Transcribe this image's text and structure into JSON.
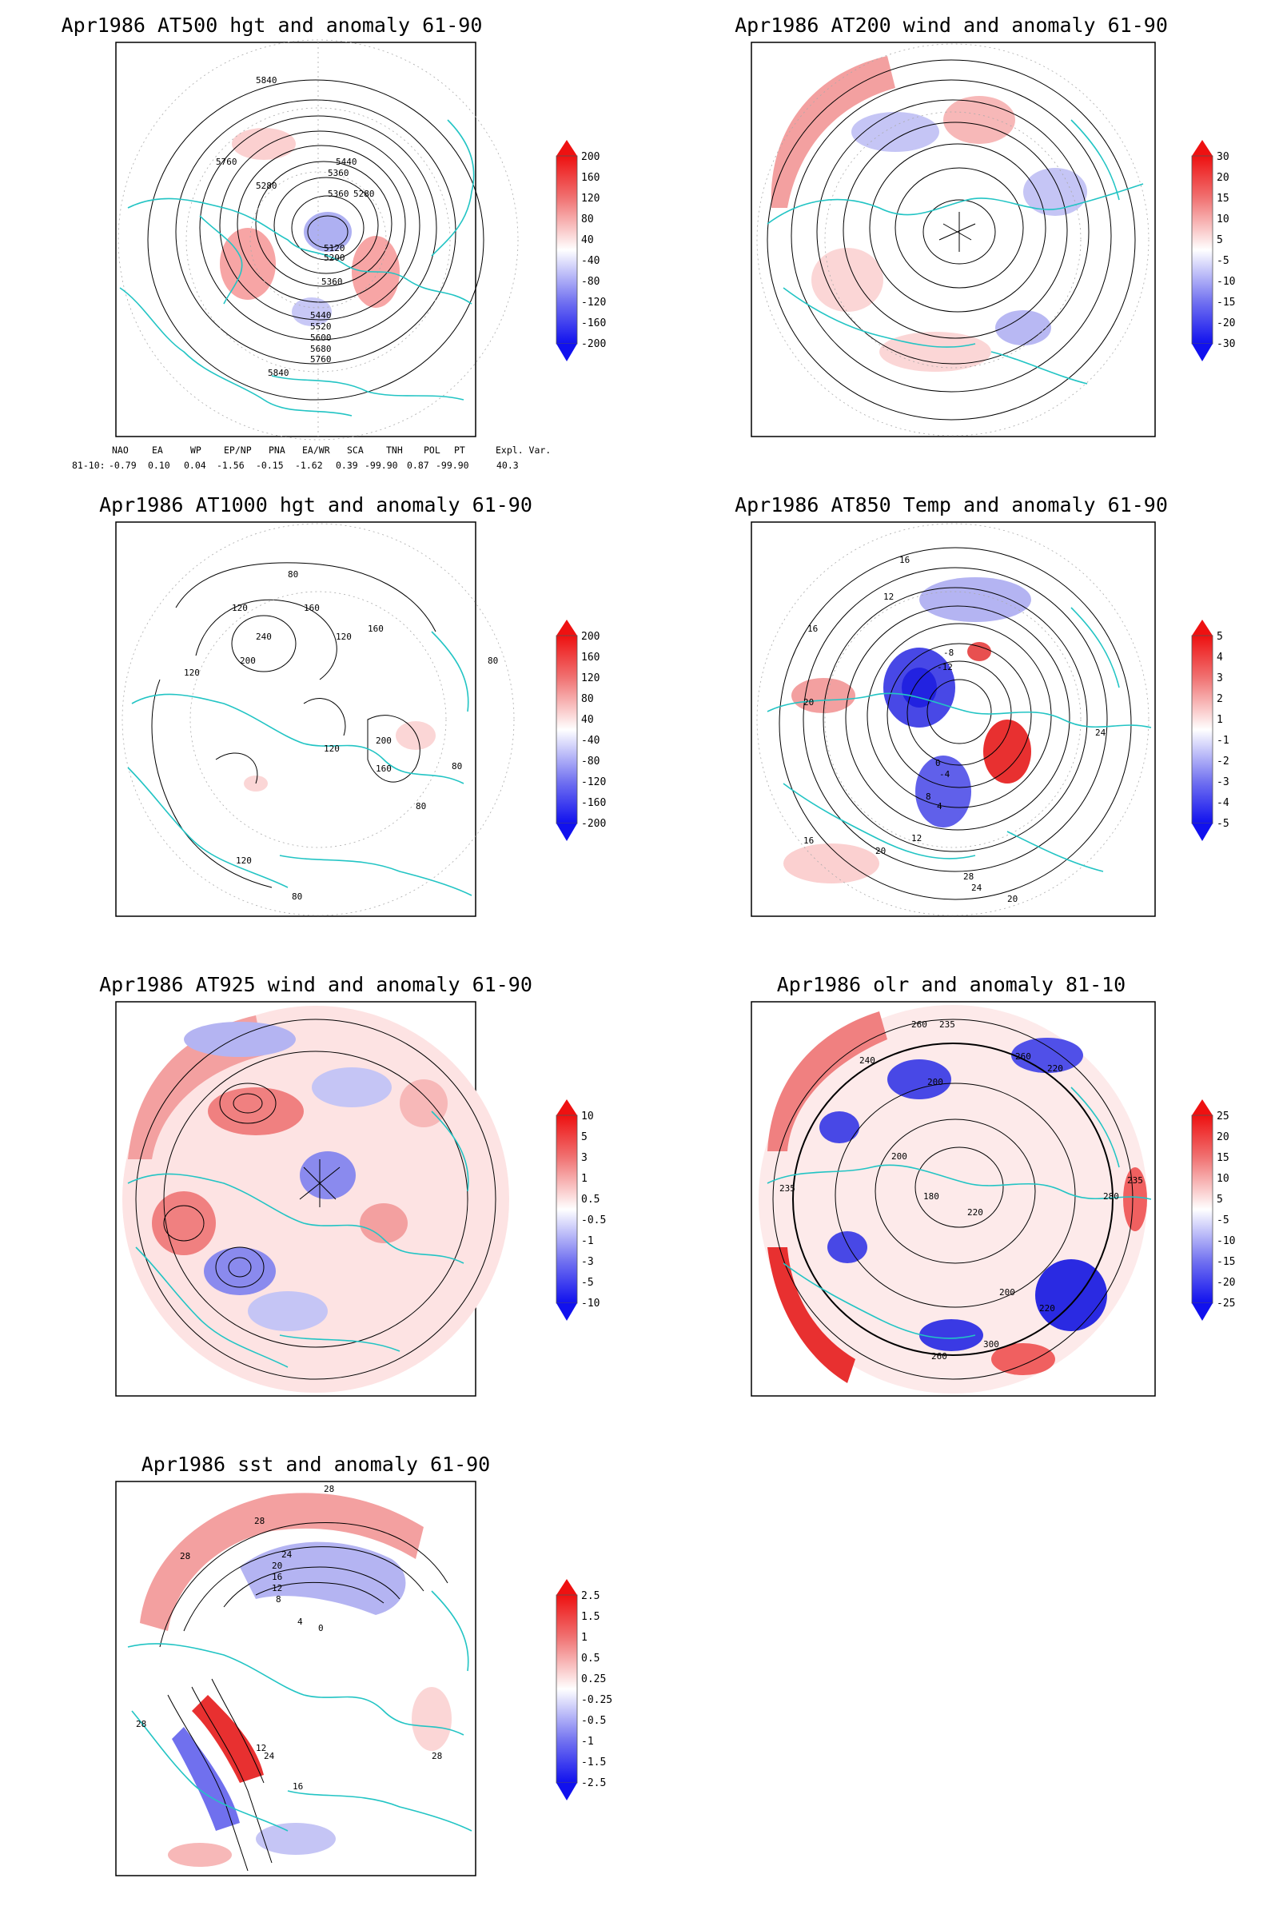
{
  "panels": [
    {
      "id": "p1",
      "title": "Apr1986 AT500 hgt and anomaly 61-90",
      "colorbar": [
        "200",
        "160",
        "120",
        "80",
        "40",
        "-40",
        "-80",
        "-120",
        "-160",
        "-200"
      ],
      "contour_labels": [
        "5840",
        "5760",
        "5440",
        "5360",
        "5280",
        "5360",
        "5280",
        "5120",
        "5200",
        "5360",
        "5440",
        "5520",
        "5600",
        "5680",
        "5760",
        "5840"
      ]
    },
    {
      "id": "p2",
      "title": "Apr1986 AT200 wind and anomaly 61-90",
      "colorbar": [
        "30",
        "20",
        "15",
        "10",
        "5",
        "-5",
        "-10",
        "-15",
        "-20",
        "-30"
      ],
      "contour_labels": []
    },
    {
      "id": "p3",
      "title": "Apr1986 AT1000 hgt and anomaly 61-90",
      "colorbar": [
        "200",
        "160",
        "120",
        "80",
        "40",
        "-40",
        "-80",
        "-120",
        "-160",
        "-200"
      ],
      "contour_labels": [
        "80",
        "120",
        "160",
        "240",
        "200",
        "120",
        "80",
        "160",
        "120",
        "200",
        "80",
        "120",
        "160",
        "80",
        "120",
        "80"
      ]
    },
    {
      "id": "p4",
      "title": "Apr1986 AT850 Temp and anomaly 61-90",
      "colorbar": [
        "5",
        "4",
        "3",
        "2",
        "1",
        "-1",
        "-2",
        "-3",
        "-4",
        "-5"
      ],
      "contour_labels": [
        "16",
        "12",
        "16",
        "20",
        "-8",
        "-12",
        "-4",
        "0",
        "8",
        "4",
        "12",
        "16",
        "20",
        "24",
        "28",
        "24",
        "20"
      ]
    },
    {
      "id": "p5",
      "title": "Apr1986 AT925 wind and anomaly 61-90",
      "colorbar": [
        "10",
        "5",
        "3",
        "1",
        "0.5",
        "-0.5",
        "-1",
        "-3",
        "-5",
        "-10"
      ],
      "contour_labels": []
    },
    {
      "id": "p6",
      "title": "Apr1986 olr and anomaly 81-10",
      "colorbar": [
        "25",
        "20",
        "15",
        "10",
        "5",
        "-5",
        "-10",
        "-15",
        "-20",
        "-25"
      ],
      "contour_labels": [
        "260",
        "240",
        "235",
        "200",
        "220",
        "260",
        "235",
        "200",
        "180",
        "220",
        "280",
        "235",
        "200",
        "220",
        "300",
        "260"
      ]
    },
    {
      "id": "p7",
      "title": "Apr1986 sst and anomaly 61-90",
      "colorbar": [
        "2.5",
        "1.5",
        "1",
        "0.5",
        "0.25",
        "-0.25",
        "-0.5",
        "-1",
        "-1.5",
        "-2.5"
      ],
      "contour_labels": [
        "28",
        "28",
        "28",
        "24",
        "20",
        "16",
        "12",
        "8",
        "4",
        "0",
        "28",
        "24",
        "16",
        "12",
        "28"
      ]
    }
  ],
  "indices": {
    "header": [
      "NAO",
      "EA",
      "WP",
      "EP/NP",
      "PNA",
      "EA/WR",
      "SCA",
      "TNH",
      "POL",
      "PT",
      "Expl. Var."
    ],
    "row_label": "81-10:",
    "values": [
      "-0.79",
      "0.10",
      "0.04",
      "-1.56",
      "-0.15",
      "-1.62",
      "0.39",
      "-99.90",
      "0.87",
      "-99.90",
      "40.3"
    ]
  },
  "colors": {
    "land_outline": "#22c4c4",
    "contour": "#000000",
    "positive_anomaly": "#e8252a",
    "negative_anomaly": "#2a2ae8"
  }
}
